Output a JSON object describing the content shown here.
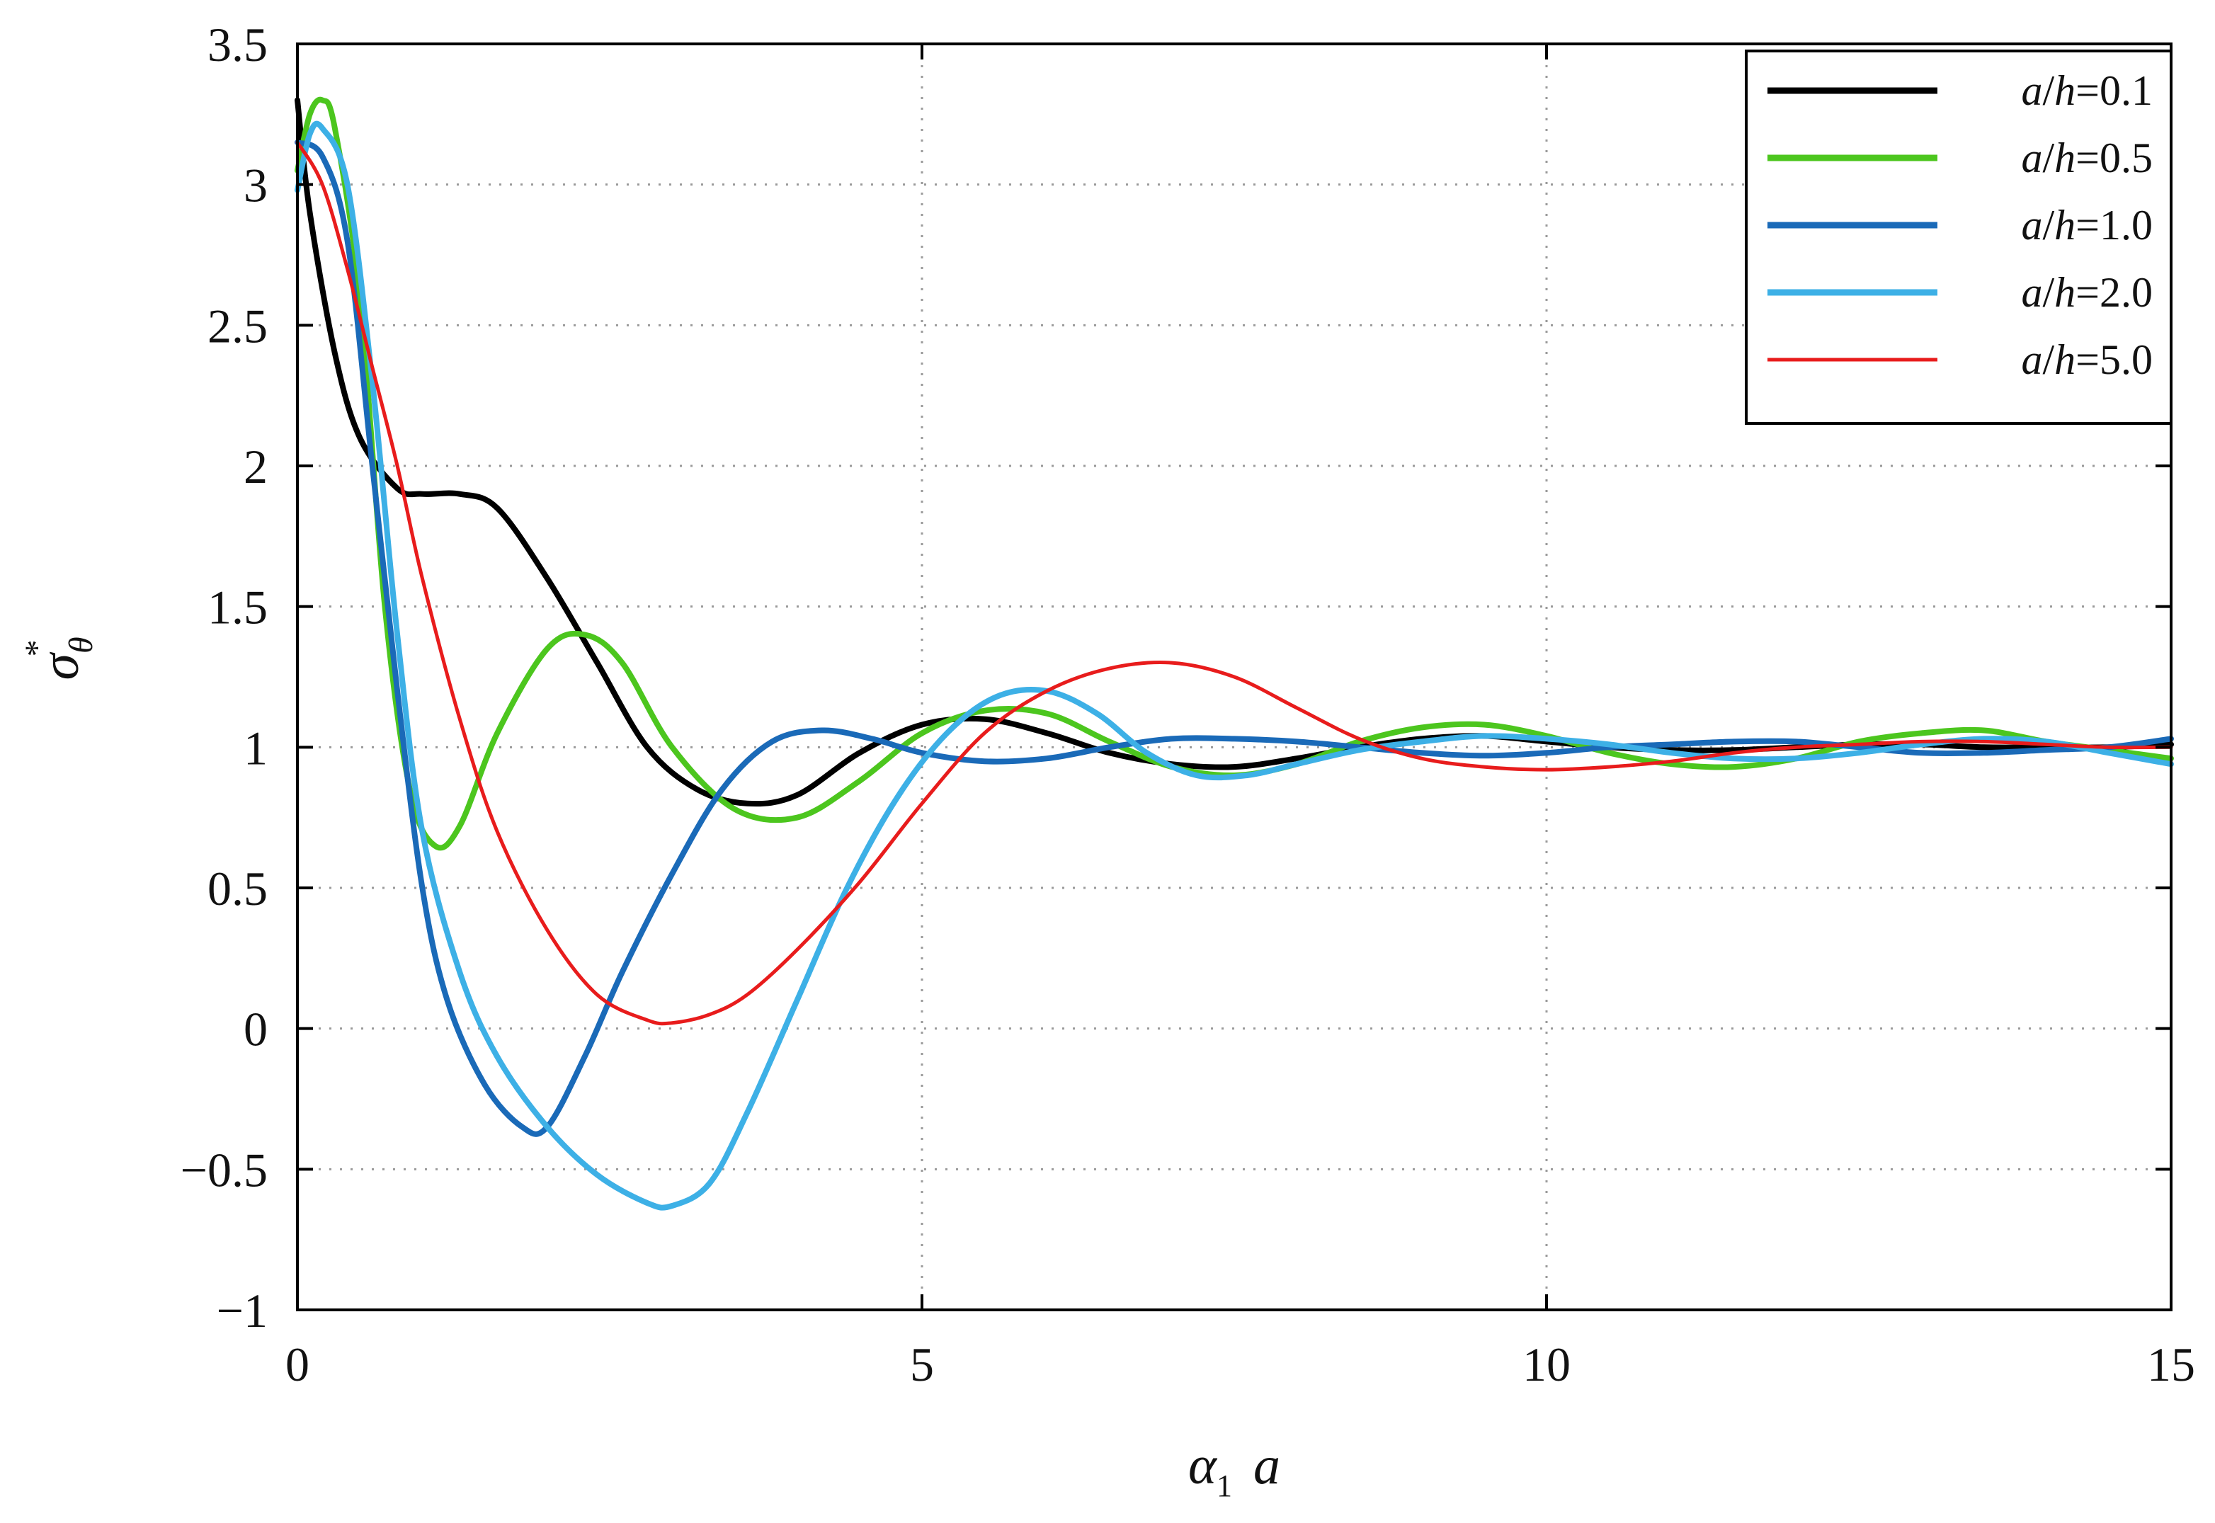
{
  "chart_data": {
    "type": "line",
    "xlim": [
      0,
      15
    ],
    "ylim": [
      -1,
      3.5
    ],
    "x_ticks": [
      "0",
      "5",
      "10",
      "15"
    ],
    "y_ticks": [
      "−1",
      "−0.5",
      "0",
      "0.5",
      "1",
      "1.5",
      "2",
      "2.5",
      "3",
      "3.5"
    ],
    "x_tick_values": [
      0,
      5,
      10,
      15
    ],
    "y_tick_values": [
      -1,
      -0.5,
      0,
      0.5,
      1,
      1.5,
      2,
      2.5,
      3,
      3.5
    ],
    "xlabel": {
      "symbol": "α",
      "subscript": "1",
      "variable": "a"
    },
    "ylabel": {
      "symbol": "σ",
      "subscript": "θ",
      "superscript": "*"
    },
    "grid": true,
    "legend_position": "top-right",
    "series": [
      {
        "name": "a/h=0.1",
        "legend_parts": [
          "a",
          "/",
          "h",
          "=0.1"
        ],
        "color": "#000000",
        "x": [
          0,
          0.1,
          0.3,
          0.5,
          0.8,
          1.0,
          1.3,
          1.6,
          2.0,
          2.4,
          2.8,
          3.2,
          3.6,
          4.0,
          4.5,
          5.0,
          5.5,
          6.0,
          6.5,
          7.0,
          7.5,
          8.0,
          8.5,
          9.0,
          9.5,
          10.0,
          10.5,
          11.0,
          11.5,
          12.0,
          12.5,
          13.0,
          13.5,
          14.0,
          14.5,
          15.0
        ],
        "y": [
          3.3,
          2.9,
          2.4,
          2.1,
          1.92,
          1.9,
          1.9,
          1.85,
          1.6,
          1.3,
          1.0,
          0.85,
          0.8,
          0.83,
          0.98,
          1.08,
          1.1,
          1.05,
          0.98,
          0.94,
          0.93,
          0.96,
          1.0,
          1.03,
          1.04,
          1.02,
          1.0,
          0.99,
          0.99,
          1.0,
          1.01,
          1.01,
          1.0,
          1.0,
          1.0,
          1.01
        ]
      },
      {
        "name": "a/h=0.5",
        "legend_parts": [
          "a",
          "/",
          "h",
          "=0.5"
        ],
        "color": "#4cc61e",
        "x": [
          0,
          0.1,
          0.2,
          0.3,
          0.5,
          0.7,
          0.9,
          1.1,
          1.3,
          1.6,
          2.0,
          2.3,
          2.6,
          3.0,
          3.5,
          4.0,
          4.5,
          5.0,
          5.5,
          6.0,
          6.5,
          7.0,
          7.5,
          8.0,
          8.5,
          9.0,
          9.5,
          10.0,
          10.5,
          11.0,
          11.5,
          12.0,
          12.5,
          13.0,
          13.5,
          14.0,
          14.5,
          15.0
        ],
        "y": [
          3.05,
          3.25,
          3.3,
          3.2,
          2.6,
          1.5,
          0.85,
          0.65,
          0.72,
          1.05,
          1.35,
          1.4,
          1.3,
          1.0,
          0.78,
          0.75,
          0.88,
          1.05,
          1.13,
          1.12,
          1.02,
          0.93,
          0.9,
          0.94,
          1.02,
          1.07,
          1.08,
          1.04,
          0.98,
          0.94,
          0.93,
          0.96,
          1.02,
          1.05,
          1.06,
          1.02,
          0.99,
          0.96
        ]
      },
      {
        "name": "a/h=1.0",
        "legend_parts": [
          "a",
          "/",
          "h",
          "=1.0"
        ],
        "color": "#1a6ab8",
        "x": [
          0,
          0.2,
          0.4,
          0.6,
          0.8,
          1.0,
          1.2,
          1.5,
          1.8,
          2.0,
          2.3,
          2.6,
          3.0,
          3.4,
          3.8,
          4.2,
          4.6,
          5.0,
          5.5,
          6.0,
          6.5,
          7.0,
          7.5,
          8.0,
          8.5,
          9.0,
          9.5,
          10.0,
          10.5,
          11.0,
          11.5,
          12.0,
          12.5,
          13.0,
          13.5,
          14.0,
          14.5,
          15.0
        ],
        "y": [
          3.15,
          3.1,
          2.8,
          2.0,
          1.2,
          0.5,
          0.1,
          -0.2,
          -0.35,
          -0.35,
          -0.1,
          0.2,
          0.55,
          0.85,
          1.02,
          1.06,
          1.03,
          0.98,
          0.95,
          0.96,
          1.0,
          1.03,
          1.03,
          1.02,
          1.0,
          0.98,
          0.97,
          0.98,
          1.0,
          1.01,
          1.02,
          1.02,
          1.0,
          0.98,
          0.98,
          0.99,
          1.0,
          1.03
        ]
      },
      {
        "name": "a/h=2.0",
        "legend_parts": [
          "a",
          "/",
          "h",
          "=2.0"
        ],
        "color": "#3db0e6",
        "x": [
          0,
          0.1,
          0.2,
          0.4,
          0.6,
          0.8,
          1.0,
          1.3,
          1.6,
          2.0,
          2.4,
          2.8,
          3.0,
          3.3,
          3.6,
          4.0,
          4.4,
          4.8,
          5.2,
          5.6,
          6.0,
          6.4,
          6.8,
          7.2,
          7.6,
          8.0,
          8.5,
          9.0,
          9.5,
          10.0,
          10.5,
          11.0,
          11.5,
          12.0,
          12.5,
          13.0,
          13.5,
          14.0,
          14.5,
          15.0
        ],
        "y": [
          2.98,
          3.18,
          3.2,
          3.0,
          2.3,
          1.4,
          0.7,
          0.2,
          -0.1,
          -0.35,
          -0.52,
          -0.62,
          -0.63,
          -0.55,
          -0.3,
          0.1,
          0.5,
          0.82,
          1.05,
          1.18,
          1.2,
          1.12,
          0.98,
          0.9,
          0.9,
          0.94,
          0.99,
          1.02,
          1.04,
          1.03,
          1.01,
          0.98,
          0.96,
          0.96,
          0.98,
          1.01,
          1.03,
          1.02,
          0.98,
          0.94
        ]
      },
      {
        "name": "a/h=5.0",
        "legend_parts": [
          "a",
          "/",
          "h",
          "=5.0"
        ],
        "color": "#e81c1c",
        "x": [
          0,
          0.2,
          0.4,
          0.6,
          0.8,
          1.0,
          1.3,
          1.6,
          2.0,
          2.4,
          2.8,
          3.0,
          3.3,
          3.6,
          4.0,
          4.5,
          5.0,
          5.5,
          6.0,
          6.5,
          7.0,
          7.5,
          8.0,
          8.5,
          9.0,
          9.5,
          10.0,
          10.5,
          11.0,
          11.5,
          12.0,
          12.5,
          13.0,
          13.5,
          14.0,
          14.5,
          15.0
        ],
        "y": [
          3.15,
          3.0,
          2.7,
          2.35,
          2.0,
          1.6,
          1.1,
          0.7,
          0.35,
          0.12,
          0.03,
          0.02,
          0.05,
          0.12,
          0.28,
          0.52,
          0.8,
          1.05,
          1.2,
          1.28,
          1.3,
          1.25,
          1.14,
          1.03,
          0.96,
          0.93,
          0.92,
          0.93,
          0.95,
          0.98,
          1.0,
          1.01,
          1.02,
          1.02,
          1.01,
          1.0,
          1.0
        ]
      }
    ]
  }
}
